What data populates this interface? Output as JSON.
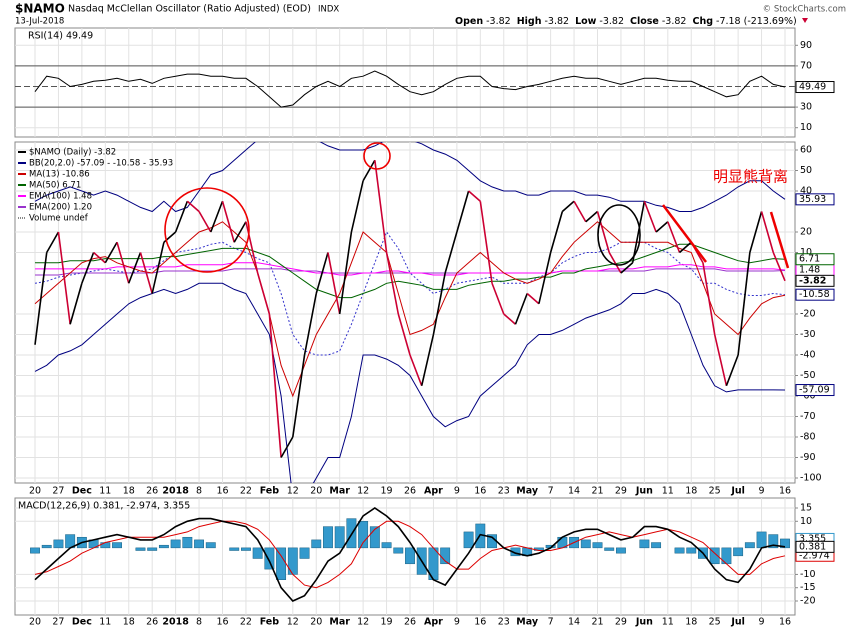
{
  "header": {
    "symbol": "$NAMO",
    "name": "Nasdaq McClellan Oscillator (Ratio Adjusted) (EOD)",
    "exchange": "INDX",
    "date": "13-Jul-2018",
    "copyright": "© StockCharts.com",
    "ohlc": [
      {
        "label": "Open",
        "value": -3.82
      },
      {
        "label": "High",
        "value": -3.82
      },
      {
        "label": "Low",
        "value": -3.82
      },
      {
        "label": "Close",
        "value": -3.82
      },
      {
        "label": "Chg",
        "value": -7.18,
        "pct": "(-213.69%)"
      }
    ],
    "annotation": "明显熊背离"
  },
  "chart_data": [
    {
      "type": "line",
      "title": "RSI(14) 49.49",
      "ylim": [
        0,
        100
      ],
      "yticks": [
        90,
        70,
        30,
        10
      ],
      "levels": [
        70,
        50,
        30
      ],
      "series": [
        {
          "color": "#000000",
          "label_last": true,
          "values": [
            45,
            60,
            58,
            50,
            52,
            55,
            56,
            58,
            55,
            57,
            53,
            58,
            60,
            62,
            62,
            60,
            60,
            58,
            58,
            50,
            40,
            30,
            32,
            42,
            50,
            55,
            50,
            58,
            60,
            65,
            60,
            52,
            45,
            42,
            45,
            52,
            58,
            60,
            60,
            50,
            48,
            47,
            50,
            52,
            55,
            58,
            60,
            58,
            58,
            55,
            52,
            55,
            58,
            58,
            56,
            55,
            55,
            50,
            45,
            40,
            42,
            55,
            60,
            52,
            49.49,
            null
          ]
        }
      ]
    },
    {
      "type": "line",
      "ylim": [
        -100,
        60
      ],
      "yticks": [
        60,
        50,
        40,
        20,
        10,
        -20,
        -30,
        -40,
        -50,
        -60,
        -70,
        -80,
        -90,
        -100
      ],
      "grid": true,
      "legend": "top-left",
      "legend_extra": "Volume undef",
      "categories": [
        "20",
        null,
        "27",
        null,
        "Dec",
        null,
        "11",
        null,
        "18",
        null,
        "26",
        null,
        "2018",
        null,
        "8",
        null,
        "16",
        null,
        "22",
        null,
        "Feb",
        null,
        "12",
        null,
        "20",
        null,
        "Mar",
        null,
        "12",
        null,
        "19",
        null,
        "26",
        null,
        "Apr",
        null,
        "9",
        null,
        "16",
        null,
        "23",
        null,
        "May",
        null,
        "7",
        null,
        "14",
        null,
        "21",
        null,
        "29",
        null,
        "Jun",
        null,
        "11",
        null,
        "18",
        null,
        "25",
        null,
        "Jul",
        null,
        "9",
        null,
        "16",
        null
      ],
      "bands": {
        "name": "BB(20,2.0) -57.09 - -10.58 - 35.93",
        "color": "#000080",
        "middle_color": "#3333cc",
        "upper": [
          35,
          38,
          40,
          42,
          40,
          38,
          40,
          38,
          35,
          32,
          30,
          35,
          30,
          32,
          40,
          48,
          50,
          55,
          60,
          65,
          70,
          75,
          75,
          70,
          65,
          62,
          60,
          60,
          60,
          62,
          65,
          65,
          65,
          63,
          60,
          58,
          55,
          50,
          45,
          42,
          40,
          40,
          38,
          38,
          40,
          40,
          40,
          38,
          38,
          37,
          35,
          35,
          35,
          33,
          32,
          30,
          30,
          32,
          35,
          38,
          42,
          45,
          45,
          40,
          35.93,
          null
        ],
        "middle": [
          -5,
          -4,
          -2,
          -1,
          0,
          1,
          2,
          1,
          0,
          1,
          2,
          6,
          10,
          11,
          12,
          14,
          15,
          12,
          10,
          7,
          5,
          -10,
          -30,
          -38,
          -40,
          -40,
          -38,
          -25,
          -10,
          5,
          20,
          12,
          0,
          -5,
          -10,
          -8,
          -5,
          -4,
          -3,
          -2,
          -5,
          -5,
          -5,
          -2,
          0,
          5,
          8,
          10,
          10,
          12,
          15,
          15,
          15,
          12,
          10,
          5,
          2,
          -5,
          -5,
          -8,
          -10,
          -11,
          -11,
          -10,
          -10.58,
          null
        ],
        "lower": [
          -48,
          -45,
          -40,
          -38,
          -35,
          -30,
          -25,
          -20,
          -15,
          -12,
          -10,
          -8,
          -10,
          -8,
          -5,
          -5,
          -5,
          -8,
          -10,
          -20,
          -30,
          -60,
          -110,
          -110,
          -100,
          -90,
          -90,
          -70,
          -40,
          -40,
          -42,
          -45,
          -50,
          -60,
          -70,
          -75,
          -72,
          -70,
          -60,
          -55,
          -50,
          -45,
          -35,
          -30,
          -30,
          -28,
          -25,
          -22,
          -20,
          -18,
          -15,
          -10,
          -10,
          -8,
          -10,
          -15,
          -30,
          -45,
          -55,
          -58,
          -57,
          -57,
          -57,
          -57,
          -57.09,
          null
        ]
      },
      "series": [
        {
          "name": "$NAMO (Daily) -3.82",
          "color": "#000000",
          "down_color": "#cc0033",
          "width": 1.6,
          "label_last": true,
          "bold_last": true,
          "values": [
            -35,
            10,
            20,
            -25,
            -5,
            10,
            5,
            15,
            -5,
            10,
            -10,
            15,
            20,
            35,
            30,
            20,
            35,
            15,
            25,
            0,
            -20,
            -90,
            -80,
            -40,
            -10,
            10,
            -20,
            20,
            45,
            55,
            10,
            -20,
            -40,
            -55,
            -30,
            0,
            20,
            40,
            35,
            -5,
            -20,
            -25,
            -10,
            -15,
            10,
            30,
            35,
            25,
            30,
            10,
            0,
            5,
            35,
            20,
            25,
            10,
            15,
            5,
            -30,
            -55,
            -40,
            10,
            30,
            10,
            -3.82,
            null
          ]
        },
        {
          "name": "MA(13) -10.86",
          "color": "#cc0000",
          "values": [
            -15,
            -10,
            -5,
            0,
            5,
            7,
            8,
            5,
            3,
            1,
            0,
            5,
            10,
            15,
            20,
            22,
            25,
            20,
            15,
            0,
            -20,
            -45,
            -60,
            -45,
            -30,
            -20,
            -10,
            5,
            20,
            15,
            10,
            -10,
            -30,
            -28,
            -25,
            -12,
            0,
            5,
            10,
            5,
            0,
            -3,
            -5,
            -3,
            0,
            8,
            15,
            20,
            25,
            20,
            15,
            15,
            15,
            15,
            15,
            12,
            10,
            -5,
            -20,
            -25,
            -30,
            -22,
            -15,
            -12,
            -10.86,
            null
          ]
        },
        {
          "name": "MA(50) 6.71",
          "color": "#006400",
          "label_last": true,
          "values": [
            5,
            5,
            5,
            6,
            6,
            6,
            7,
            7,
            7,
            7,
            7,
            8,
            8,
            9,
            10,
            11,
            12,
            12,
            12,
            10,
            8,
            4,
            0,
            -4,
            -8,
            -10,
            -12,
            -12,
            -10,
            -8,
            -5,
            -4,
            -5,
            -6,
            -8,
            -8,
            -8,
            -6,
            -5,
            -4,
            -4,
            -3,
            -3,
            -2,
            -2,
            0,
            0,
            2,
            3,
            4,
            5,
            6,
            8,
            10,
            12,
            14,
            14,
            12,
            10,
            8,
            6,
            5,
            6,
            7,
            6.71,
            null
          ]
        },
        {
          "name": "EMA(100) 1.48",
          "color": "#ff00ff",
          "label_last": true,
          "values": [
            2,
            2,
            2,
            2,
            2,
            2,
            2,
            3,
            3,
            3,
            3,
            3,
            3,
            4,
            4,
            4,
            4,
            5,
            5,
            5,
            4,
            3,
            2,
            1,
            0,
            0,
            -1,
            -1,
            0,
            0,
            1,
            1,
            0,
            0,
            -1,
            -1,
            -1,
            0,
            0,
            0,
            0,
            0,
            0,
            0,
            0,
            1,
            1,
            1,
            1,
            2,
            2,
            2,
            3,
            3,
            3,
            4,
            4,
            3,
            3,
            2,
            2,
            2,
            2,
            2,
            1.48,
            null
          ]
        },
        {
          "name": "EMA(200) 1.20",
          "color": "#9933cc",
          "values": [
            -1,
            -1,
            -1,
            0,
            0,
            0,
            0,
            0,
            0,
            0,
            0,
            1,
            1,
            1,
            1,
            1,
            1,
            2,
            2,
            2,
            2,
            2,
            1,
            1,
            1,
            0,
            0,
            0,
            0,
            0,
            0,
            0,
            0,
            0,
            0,
            0,
            0,
            0,
            0,
            0,
            0,
            0,
            0,
            0,
            0,
            1,
            1,
            1,
            1,
            1,
            1,
            1,
            1,
            2,
            2,
            2,
            2,
            2,
            2,
            1,
            1,
            1,
            1,
            1,
            1.2,
            null
          ]
        }
      ]
    },
    {
      "type": "macd",
      "title": "MACD(12,26,9) 0.381, -2.974, 3.355",
      "ylim": [
        -20,
        15
      ],
      "yticks": [
        15,
        10,
        -10,
        -15,
        -20
      ],
      "histogram": {
        "color": "#3399cc",
        "label_last": true,
        "values": [
          -2,
          1,
          3,
          5,
          4,
          3,
          2,
          2,
          0,
          -1,
          -1,
          1,
          3,
          4,
          3,
          2,
          0,
          -1,
          -1,
          -4,
          -8,
          -12,
          -10,
          -4,
          3,
          8,
          8,
          11,
          10,
          8,
          2,
          -2,
          -6,
          -10,
          -12,
          -6,
          0,
          6,
          9,
          5,
          0,
          -3,
          -3,
          -1,
          1,
          4,
          4,
          3,
          2,
          -1,
          -2,
          0,
          3,
          2,
          0,
          -2,
          -2,
          -4,
          -6,
          -6,
          -3,
          2,
          6,
          5,
          3.355,
          null
        ]
      },
      "series": [
        {
          "color": "#000000",
          "width": 1.6,
          "label_last": true,
          "values": [
            -12,
            -8,
            -4,
            0,
            2,
            3,
            4,
            5,
            4,
            3,
            3,
            5,
            8,
            10,
            11,
            11,
            10,
            9,
            8,
            3,
            -5,
            -15,
            -20,
            -18,
            -12,
            -5,
            -2,
            5,
            12,
            15,
            12,
            8,
            2,
            -5,
            -12,
            -14,
            -8,
            -2,
            5,
            4,
            0,
            -2,
            -3,
            -2,
            0,
            4,
            6,
            7,
            7,
            5,
            3,
            4,
            8,
            8,
            7,
            4,
            2,
            -2,
            -8,
            -12,
            -13,
            -8,
            0,
            1,
            0.381,
            null
          ]
        },
        {
          "color": "#dd0000",
          "label_last": true,
          "values": [
            -10,
            -9,
            -7,
            -5,
            -2,
            0,
            2,
            3,
            4,
            4,
            4,
            4,
            5,
            6,
            8,
            9,
            10,
            10,
            9,
            7,
            3,
            -3,
            -10,
            -14,
            -15,
            -13,
            -10,
            -6,
            2,
            7,
            10,
            10,
            8,
            5,
            0,
            -5,
            -8,
            -8,
            -4,
            -1,
            0,
            1,
            0,
            -1,
            -1,
            0,
            2,
            4,
            5,
            6,
            5,
            4,
            5,
            6,
            7,
            6,
            4,
            2,
            -2,
            -6,
            -10,
            -10,
            -6,
            -4,
            -2.974,
            null
          ]
        }
      ]
    }
  ]
}
